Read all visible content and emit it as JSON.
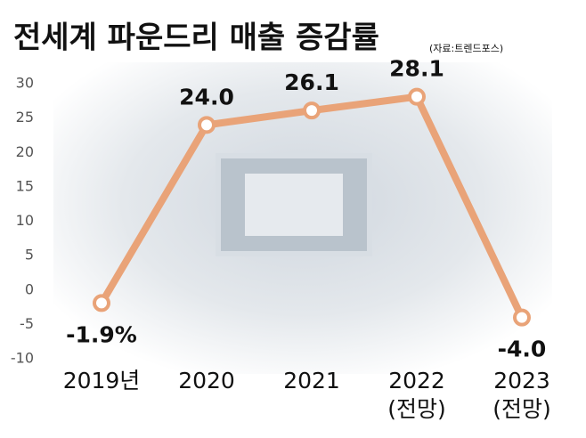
{
  "chart_data": {
    "type": "line",
    "title": "전세계 파운드리 매출 증감률",
    "subtitle": "(자료:트렌드포스)",
    "categories": [
      "2019년",
      "2020",
      "2021",
      "2022\n(전망)",
      "2023\n(전망)"
    ],
    "series": [
      {
        "name": "매출 증감률",
        "color": "#e9a378",
        "values": [
          -1.9,
          24.0,
          26.1,
          28.1,
          -4.0
        ],
        "value_labels": [
          "-1.9%",
          "24.0",
          "26.1",
          "28.1",
          "-4.0"
        ]
      }
    ],
    "ylim": [
      -10,
      30
    ],
    "yticks": [
      -10,
      -5,
      0,
      5,
      10,
      15,
      20,
      25,
      30
    ],
    "grid": false
  }
}
